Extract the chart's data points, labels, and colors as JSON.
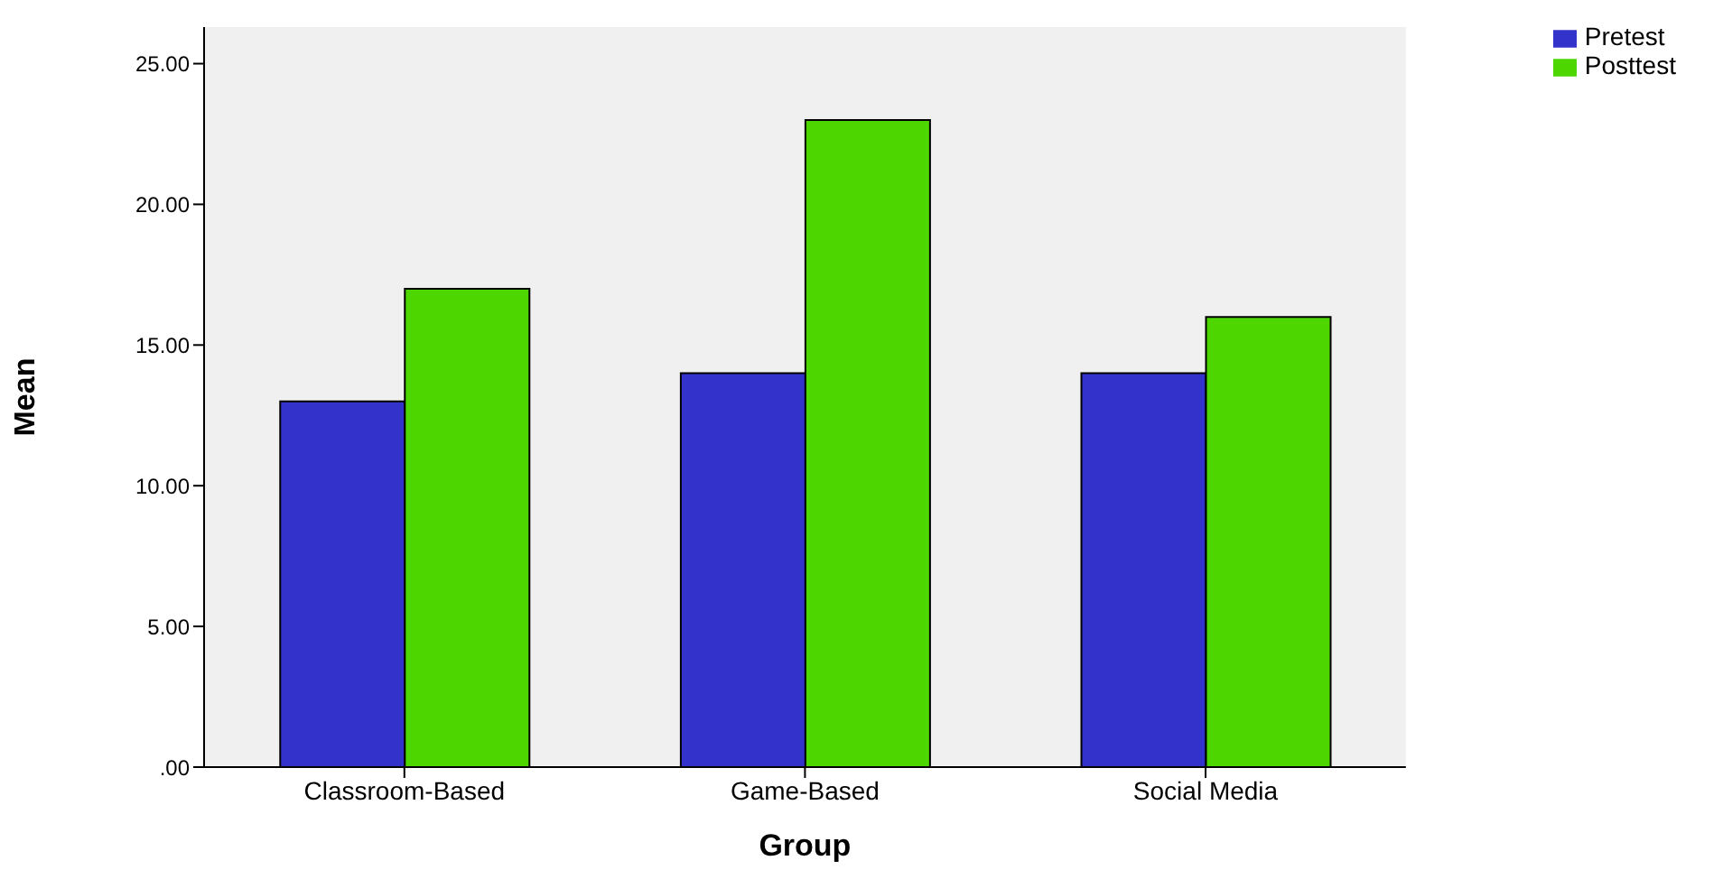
{
  "chart_data": {
    "type": "bar",
    "xlabel": "Group",
    "ylabel": "Mean",
    "categories": [
      "Classroom-Based",
      "Game-Based",
      "Social Media"
    ],
    "series": [
      {
        "name": "Pretest",
        "color": "#3333cc",
        "values": [
          13,
          14,
          14
        ]
      },
      {
        "name": "Posttest",
        "color": "#4dd600",
        "values": [
          17,
          23,
          16
        ]
      }
    ],
    "ylim": [
      0,
      26.3
    ],
    "yticks": [
      {
        "value": 0,
        "label": ".00"
      },
      {
        "value": 5,
        "label": "5.00"
      },
      {
        "value": 10,
        "label": "10.00"
      },
      {
        "value": 15,
        "label": "15.00"
      },
      {
        "value": 20,
        "label": "20.00"
      },
      {
        "value": 25,
        "label": "25.00"
      }
    ],
    "grid": false,
    "legend": "top right"
  }
}
